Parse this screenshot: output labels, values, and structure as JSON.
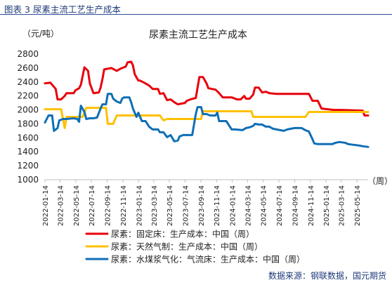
{
  "figure_caption": "图表 3  尿素主流工艺生产成本",
  "source": "数据来源：钢联数据，国元期货",
  "colors": {
    "fixed_bed": "#e8000b",
    "natural_gas": "#ffc000",
    "coal_water_slurry": "#0e6fb5",
    "caption": "#1f3a7a",
    "rule": "#2b4e96"
  },
  "chart_data": {
    "type": "line",
    "title": "尿素主流工艺生产成本",
    "ylabel": "（元/吨）",
    "xlabel": "（周）",
    "ylim": [
      1000,
      2800
    ],
    "yticks": [
      "2800",
      "2600",
      "2400",
      "2200",
      "2000",
      "1800",
      "1600",
      "1400",
      "1200",
      "1000"
    ],
    "x_tick_labels": [
      "2022-01-14",
      "2022-03-14",
      "2022-05-14",
      "2022-07-14",
      "2022-09-14",
      "2022-11-14",
      "2023-01-14",
      "2023-03-14",
      "2023-05-14",
      "2023-07-14",
      "2023-09-14",
      "2023-11-14",
      "2024-01-14",
      "2024-03-14",
      "2024-05-14",
      "2024-07-14",
      "2024-09-14",
      "2024-11-14",
      "2025-01-14",
      "2025-03-14",
      "2025-05-14"
    ],
    "x_range": [
      "2022-01-14",
      "2025-06-27"
    ],
    "grid": false,
    "legend_position": "bottom",
    "series": [
      {
        "name": "尿素：固定床：生产成本：中国（周）",
        "color_key": "fixed_bed",
        "points": [
          [
            "2022-01-14",
            2380
          ],
          [
            "2022-02-04",
            2390
          ],
          [
            "2022-02-25",
            2300
          ],
          [
            "2022-03-04",
            2150
          ],
          [
            "2022-03-18",
            2150
          ],
          [
            "2022-04-01",
            2200
          ],
          [
            "2022-04-08",
            2240
          ],
          [
            "2022-05-06",
            2240
          ],
          [
            "2022-05-13",
            2280
          ],
          [
            "2022-05-27",
            2310
          ],
          [
            "2022-06-03",
            2360
          ],
          [
            "2022-06-17",
            2610
          ],
          [
            "2022-07-01",
            2560
          ],
          [
            "2022-07-08",
            2380
          ],
          [
            "2022-07-22",
            2240
          ],
          [
            "2022-08-12",
            2250
          ],
          [
            "2022-08-19",
            2320
          ],
          [
            "2022-08-26",
            2440
          ],
          [
            "2022-09-02",
            2580
          ],
          [
            "2022-09-30",
            2600
          ],
          [
            "2022-10-21",
            2560
          ],
          [
            "2022-11-04",
            2590
          ],
          [
            "2022-11-25",
            2620
          ],
          [
            "2022-12-02",
            2680
          ],
          [
            "2022-12-16",
            2690
          ],
          [
            "2022-12-23",
            2640
          ],
          [
            "2022-12-30",
            2510
          ],
          [
            "2023-01-13",
            2420
          ],
          [
            "2023-01-20",
            2420
          ],
          [
            "2023-02-10",
            2380
          ],
          [
            "2023-02-24",
            2350
          ],
          [
            "2023-03-10",
            2300
          ],
          [
            "2023-03-31",
            2300
          ],
          [
            "2023-04-07",
            2230
          ],
          [
            "2023-04-21",
            2240
          ],
          [
            "2023-05-05",
            2140
          ],
          [
            "2023-05-19",
            2150
          ],
          [
            "2023-06-02",
            2110
          ],
          [
            "2023-06-16",
            2080
          ],
          [
            "2023-06-30",
            2090
          ],
          [
            "2023-07-14",
            2100
          ],
          [
            "2023-07-21",
            2130
          ],
          [
            "2023-08-04",
            2150
          ],
          [
            "2023-08-25",
            2170
          ],
          [
            "2023-09-08",
            2470
          ],
          [
            "2023-09-22",
            2470
          ],
          [
            "2023-10-06",
            2380
          ],
          [
            "2023-10-13",
            2310
          ],
          [
            "2023-10-27",
            2300
          ],
          [
            "2023-11-10",
            2290
          ],
          [
            "2023-11-24",
            2240
          ],
          [
            "2023-12-08",
            2180
          ],
          [
            "2023-12-29",
            2180
          ],
          [
            "2024-01-12",
            2180
          ],
          [
            "2024-02-02",
            2150
          ],
          [
            "2024-02-16",
            2150
          ],
          [
            "2024-03-01",
            2200
          ],
          [
            "2024-03-08",
            2160
          ],
          [
            "2024-03-22",
            2160
          ],
          [
            "2024-04-05",
            2220
          ],
          [
            "2024-04-12",
            2320
          ],
          [
            "2024-04-26",
            2320
          ],
          [
            "2024-05-10",
            2250
          ],
          [
            "2024-05-24",
            2260
          ],
          [
            "2024-06-07",
            2240
          ],
          [
            "2024-07-05",
            2230
          ],
          [
            "2024-11-08",
            2230
          ],
          [
            "2024-11-22",
            2130
          ],
          [
            "2024-12-13",
            2130
          ],
          [
            "2024-12-27",
            2020
          ],
          [
            "2025-02-14",
            2000
          ],
          [
            "2025-03-14",
            2000
          ],
          [
            "2025-06-06",
            1990
          ],
          [
            "2025-06-13",
            1920
          ],
          [
            "2025-06-27",
            1920
          ]
        ]
      },
      {
        "name": "尿素：天然气制：生产成本：中国（周）",
        "color_key": "natural_gas",
        "points": [
          [
            "2022-01-14",
            2010
          ],
          [
            "2022-03-18",
            2010
          ],
          [
            "2022-04-01",
            1740
          ],
          [
            "2022-04-08",
            1900
          ],
          [
            "2022-06-10",
            1900
          ],
          [
            "2022-06-24",
            2030
          ],
          [
            "2022-09-09",
            2030
          ],
          [
            "2022-09-16",
            1800
          ],
          [
            "2022-10-07",
            1800
          ],
          [
            "2022-10-21",
            1920
          ],
          [
            "2023-04-07",
            1920
          ],
          [
            "2023-04-21",
            1850
          ],
          [
            "2023-05-05",
            1870
          ],
          [
            "2023-09-15",
            1870
          ],
          [
            "2023-09-22",
            1980
          ],
          [
            "2024-03-29",
            1980
          ],
          [
            "2024-04-05",
            1900
          ],
          [
            "2024-10-25",
            1900
          ],
          [
            "2024-11-08",
            1970
          ],
          [
            "2025-06-27",
            1970
          ]
        ]
      },
      {
        "name": "尿素：水煤浆气化：气流床：生产成本：中国（周）",
        "color_key": "coal_water_slurry",
        "points": [
          [
            "2022-01-14",
            1820
          ],
          [
            "2022-01-28",
            1920
          ],
          [
            "2022-02-11",
            1920
          ],
          [
            "2022-02-18",
            1700
          ],
          [
            "2022-03-04",
            1740
          ],
          [
            "2022-03-11",
            1850
          ],
          [
            "2022-03-25",
            1870
          ],
          [
            "2022-04-08",
            1870
          ],
          [
            "2022-05-06",
            1880
          ],
          [
            "2022-05-20",
            1870
          ],
          [
            "2022-05-27",
            1830
          ],
          [
            "2022-06-03",
            2060
          ],
          [
            "2022-06-17",
            1970
          ],
          [
            "2022-06-24",
            1870
          ],
          [
            "2022-07-08",
            1880
          ],
          [
            "2022-07-22",
            1880
          ],
          [
            "2022-08-05",
            1890
          ],
          [
            "2022-08-19",
            2020
          ],
          [
            "2022-08-26",
            2080
          ],
          [
            "2022-09-09",
            2080
          ],
          [
            "2022-09-16",
            2230
          ],
          [
            "2022-09-30",
            2230
          ],
          [
            "2022-10-07",
            2160
          ],
          [
            "2022-10-21",
            2120
          ],
          [
            "2022-11-04",
            2100
          ],
          [
            "2022-11-11",
            2160
          ],
          [
            "2022-11-18",
            2180
          ],
          [
            "2022-12-09",
            2180
          ],
          [
            "2022-12-16",
            2110
          ],
          [
            "2022-12-23",
            2020
          ],
          [
            "2023-01-06",
            1900
          ],
          [
            "2023-01-13",
            1960
          ],
          [
            "2023-01-20",
            1900
          ],
          [
            "2023-01-27",
            1840
          ],
          [
            "2023-02-10",
            1840
          ],
          [
            "2023-02-24",
            1760
          ],
          [
            "2023-03-10",
            1720
          ],
          [
            "2023-03-31",
            1720
          ],
          [
            "2023-04-07",
            1680
          ],
          [
            "2023-04-21",
            1680
          ],
          [
            "2023-05-05",
            1610
          ],
          [
            "2023-05-19",
            1640
          ],
          [
            "2023-06-02",
            1550
          ],
          [
            "2023-06-16",
            1560
          ],
          [
            "2023-06-23",
            1620
          ],
          [
            "2023-07-07",
            1640
          ],
          [
            "2023-07-21",
            1640
          ],
          [
            "2023-08-11",
            1640
          ],
          [
            "2023-08-25",
            1940
          ],
          [
            "2023-09-01",
            2040
          ],
          [
            "2023-09-15",
            2040
          ],
          [
            "2023-09-22",
            1940
          ],
          [
            "2023-10-06",
            1940
          ],
          [
            "2023-10-20",
            1920
          ],
          [
            "2023-11-10",
            1920
          ],
          [
            "2023-11-17",
            1960
          ],
          [
            "2023-11-24",
            1840
          ],
          [
            "2023-12-08",
            1840
          ],
          [
            "2023-12-22",
            1840
          ],
          [
            "2024-01-05",
            1760
          ],
          [
            "2024-01-12",
            1720
          ],
          [
            "2024-01-26",
            1720
          ],
          [
            "2024-02-23",
            1710
          ],
          [
            "2024-03-08",
            1740
          ],
          [
            "2024-03-22",
            1750
          ],
          [
            "2024-04-05",
            1770
          ],
          [
            "2024-04-12",
            1800
          ],
          [
            "2024-04-26",
            1790
          ],
          [
            "2024-05-10",
            1790
          ],
          [
            "2024-05-24",
            1760
          ],
          [
            "2024-06-07",
            1760
          ],
          [
            "2024-06-21",
            1730
          ],
          [
            "2024-07-05",
            1720
          ],
          [
            "2024-07-19",
            1710
          ],
          [
            "2024-08-02",
            1700
          ],
          [
            "2024-08-16",
            1720
          ],
          [
            "2024-08-30",
            1730
          ],
          [
            "2024-09-13",
            1740
          ],
          [
            "2024-10-11",
            1740
          ],
          [
            "2024-10-25",
            1710
          ],
          [
            "2024-11-08",
            1690
          ],
          [
            "2024-11-22",
            1580
          ],
          [
            "2024-11-29",
            1520
          ],
          [
            "2024-12-13",
            1510
          ],
          [
            "2025-01-10",
            1510
          ],
          [
            "2025-02-07",
            1510
          ],
          [
            "2025-02-21",
            1530
          ],
          [
            "2025-03-07",
            1540
          ],
          [
            "2025-03-28",
            1530
          ],
          [
            "2025-04-11",
            1510
          ],
          [
            "2025-05-02",
            1500
          ],
          [
            "2025-05-23",
            1490
          ],
          [
            "2025-06-06",
            1480
          ],
          [
            "2025-06-27",
            1470
          ]
        ]
      }
    ]
  }
}
